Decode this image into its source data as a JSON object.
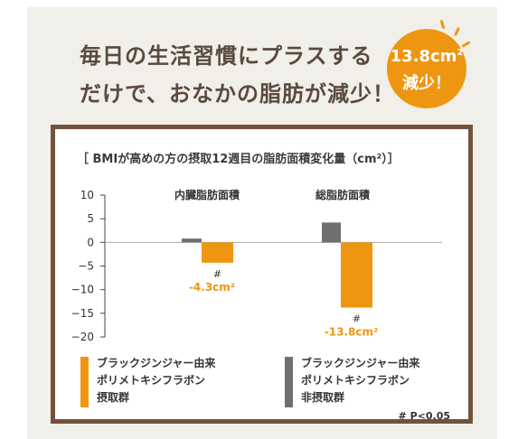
{
  "headline": {
    "line1": "毎日の生活習慣にプラスする",
    "line2": "だけで、おなかの脂肪が減少！"
  },
  "badge": {
    "line1_main": "13.8cm",
    "line1_sup": "2",
    "line2": "減少！"
  },
  "colors": {
    "panel_bg": "#f1efe9",
    "frame_border": "#74513a",
    "accent": "#ee9611",
    "gray_bar": "#6f6f6f",
    "headline_text": "#5a4a3e"
  },
  "chart_data": {
    "type": "bar",
    "title": "［ BMIが高めの方の摂取12週目の脂肪面積変化量（cm²）］",
    "categories": [
      "内臓脂肪面積",
      "総脂肪面積"
    ],
    "series": [
      {
        "name": "ブラックジンジャー由来ポリメトキシフラボン摂取群",
        "color": "#ee9611",
        "values": [
          -4.3,
          -13.8
        ],
        "labels": [
          "-4.3cm²",
          "-13.8cm²"
        ],
        "marks": [
          "#",
          "#"
        ]
      },
      {
        "name": "ブラックジンジャー由来ポリメトキシフラボン非摂取群",
        "color": "#6f6f6f",
        "values": [
          0.8,
          4.2
        ]
      }
    ],
    "yticks": [
      "10",
      "5",
      "0",
      "−5",
      "−10",
      "−15",
      "−20"
    ],
    "ylim": [
      -20,
      10
    ],
    "legend": [
      {
        "lines": [
          "ブラックジンジャー由来",
          "ポリメトキシフラボン",
          "摂取群"
        ],
        "color": "#ee9611"
      },
      {
        "lines": [
          "ブラックジンジャー由来",
          "ポリメトキシフラボン",
          "非摂取群"
        ],
        "color": "#6f6f6f"
      }
    ],
    "legend_placement": "bottom",
    "footnote": "# P<0.05"
  }
}
